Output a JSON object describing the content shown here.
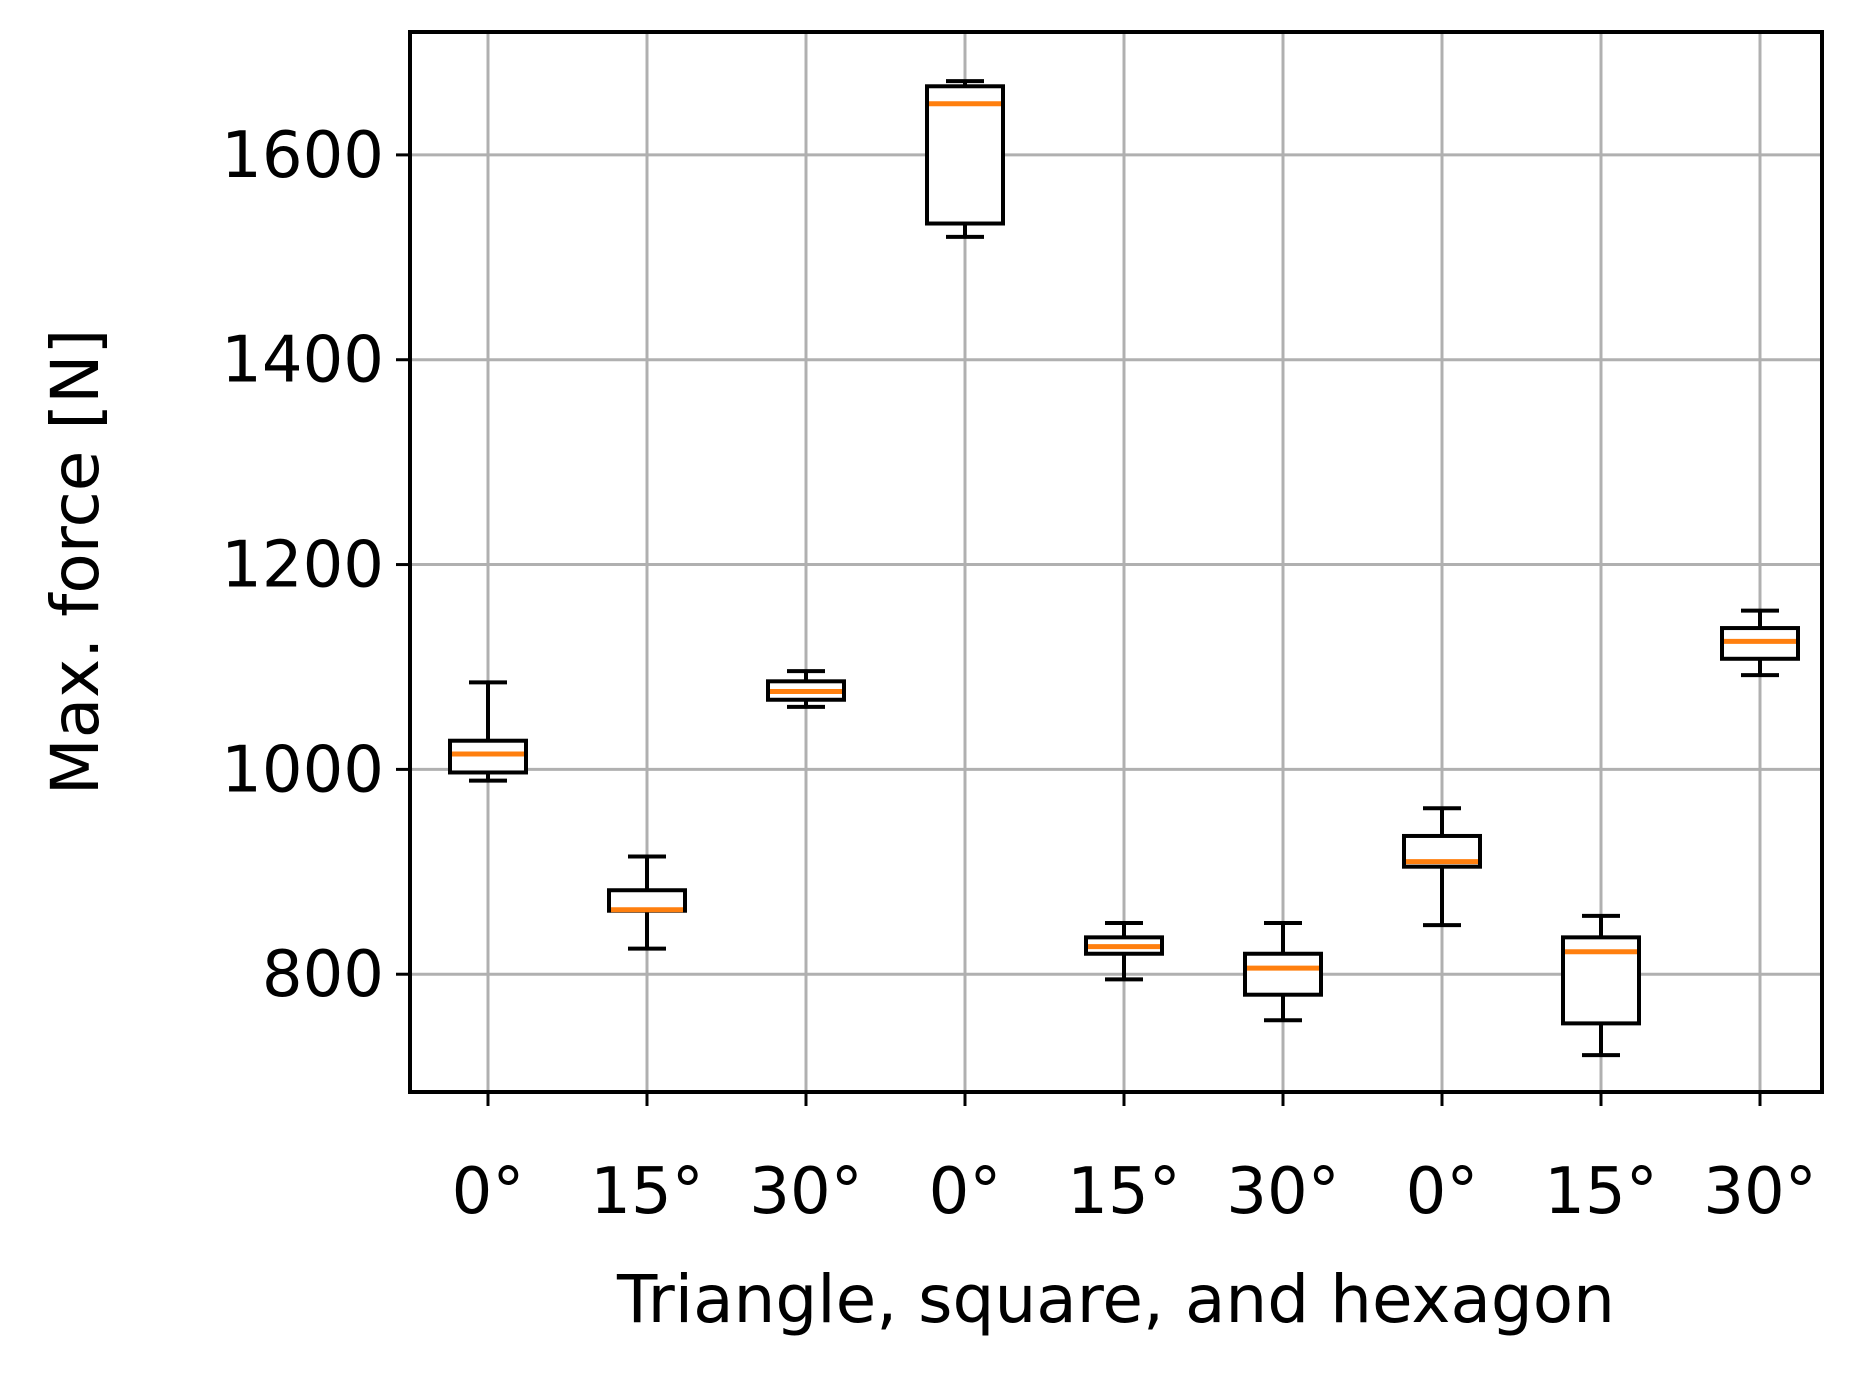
{
  "chart_data": {
    "type": "boxplot",
    "title": "",
    "xlabel": "Triangle, square, and hexagon",
    "ylabel": "Max. force [N]",
    "ylim": [
      685,
      1720
    ],
    "yticks": [
      800,
      1000,
      1200,
      1400,
      1600
    ],
    "grid": true,
    "categories": [
      "0°",
      "15°",
      "30°",
      "0°",
      "15°",
      "30°",
      "0°",
      "15°",
      "30°"
    ],
    "boxes": [
      {
        "whislo": 989,
        "q1": 997,
        "med": 1015,
        "q3": 1028,
        "whishi": 1085
      },
      {
        "whislo": 825,
        "q1": 862,
        "med": 863,
        "q3": 882,
        "whishi": 915
      },
      {
        "whislo": 1061,
        "q1": 1068,
        "med": 1076,
        "q3": 1086,
        "whishi": 1096
      },
      {
        "whislo": 1520,
        "q1": 1533,
        "med": 1650,
        "q3": 1667,
        "whishi": 1672
      },
      {
        "whislo": 795,
        "q1": 820,
        "med": 827,
        "q3": 836,
        "whishi": 850
      },
      {
        "whislo": 755,
        "q1": 780,
        "med": 806,
        "q3": 820,
        "whishi": 850
      },
      {
        "whislo": 848,
        "q1": 905,
        "med": 910,
        "q3": 935,
        "whishi": 962
      },
      {
        "whislo": 721,
        "q1": 752,
        "med": 822,
        "q3": 836,
        "whishi": 857
      },
      {
        "whislo": 1092,
        "q1": 1108,
        "med": 1125,
        "q3": 1138,
        "whishi": 1155
      }
    ],
    "colors": {
      "box": "#000000",
      "median": "#ff7f0e",
      "grid": "#b0b0b0"
    }
  }
}
